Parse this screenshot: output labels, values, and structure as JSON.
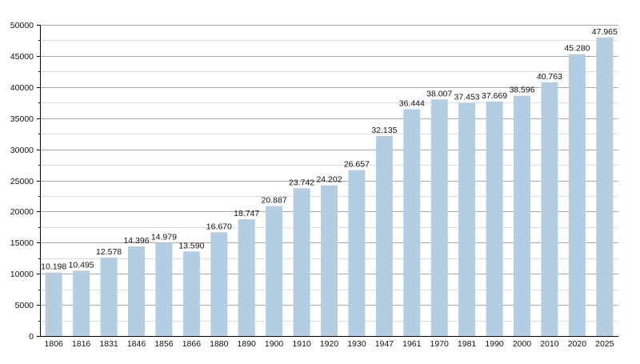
{
  "chart_data": {
    "type": "bar",
    "title": "",
    "xlabel": "",
    "ylabel": "",
    "ylim": [
      0,
      50000
    ],
    "yticks": [
      0,
      5000,
      10000,
      15000,
      20000,
      25000,
      30000,
      35000,
      40000,
      45000,
      50000
    ],
    "ytick_labels": [
      "0",
      "5000",
      "10000",
      "15000",
      "20000",
      "25000",
      "30000",
      "35000",
      "40000",
      "45000",
      "50000"
    ],
    "grid": true,
    "legend": "none",
    "bar_color": "#b3cde3",
    "grid_color_major": "#a9a9a9",
    "grid_color_minor": "#dddddd",
    "categories": [
      "1806",
      "1816",
      "1831",
      "1846",
      "1856",
      "1866",
      "1880",
      "1890",
      "1900",
      "1910",
      "1920",
      "1930",
      "1947",
      "1961",
      "1970",
      "1981",
      "1990",
      "2000",
      "2010",
      "2020",
      "2025"
    ],
    "values": [
      10198,
      10495,
      12578,
      14396,
      14979,
      13590,
      16670,
      18747,
      20887,
      23742,
      24202,
      26657,
      32135,
      36444,
      38007,
      37453,
      37669,
      38596,
      40763,
      45280,
      47965
    ],
    "data_labels": [
      "10.198",
      "10.495",
      "12.578",
      "14.396",
      "14.979",
      "13.590",
      "16.670",
      "18.747",
      "20.887",
      "23.742",
      "24.202",
      "26.657",
      "32.135",
      "36.444",
      "38.007",
      "37.453",
      "37.669",
      "38.596",
      "40.763",
      "45.280",
      "47.965"
    ]
  }
}
